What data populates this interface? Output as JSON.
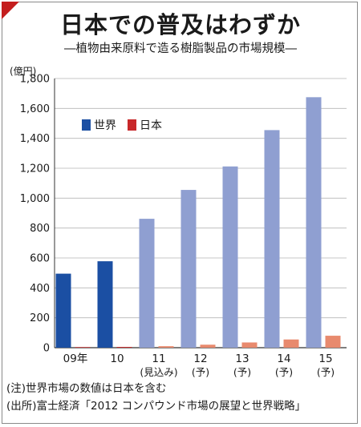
{
  "title": "日本での普及はわずか",
  "subtitle": "―植物由来原料で造る樹脂製品の市場規模―",
  "unit": "(億円)",
  "notes": [
    "(注)世界市場の数値は日本を含む",
    "(出所)富士経済「2012 コンパウンド市場の展望と世界戦略」"
  ],
  "colors": {
    "world_actual": "#1b4fa3",
    "world_forecast": "#8f9fd1",
    "japan_actual": "#c8282a",
    "japan_forecast": "#e88a6e",
    "accent": "#c41e1e"
  },
  "chart_data": {
    "type": "bar",
    "title": "日本での普及はわずか",
    "subtitle": "―植物由来原料で造る樹脂製品の市場規模―",
    "ylabel": "(億円)",
    "ylim": [
      0,
      1800
    ],
    "yticks": [
      0,
      200,
      400,
      600,
      800,
      1000,
      1200,
      1400,
      1600,
      1800
    ],
    "ytick_labels": [
      "0",
      "200",
      "400",
      "600",
      "800",
      "1,000",
      "1,200",
      "1,400",
      "1,600",
      "1,800"
    ],
    "grid": true,
    "legend_position": "top-left",
    "categories": [
      {
        "top": "09年",
        "bottom": ""
      },
      {
        "top": "10",
        "bottom": ""
      },
      {
        "top": "11",
        "bottom": "(見込み)"
      },
      {
        "top": "12",
        "bottom": "(予)"
      },
      {
        "top": "13",
        "bottom": "(予)"
      },
      {
        "top": "14",
        "bottom": "(予)"
      },
      {
        "top": "15",
        "bottom": "(予)"
      }
    ],
    "forecast_from_index": 2,
    "series": [
      {
        "name": "世界",
        "values": [
          495,
          578,
          862,
          1055,
          1212,
          1455,
          1675
        ]
      },
      {
        "name": "日本",
        "values": [
          4,
          5,
          10,
          20,
          35,
          55,
          80
        ]
      }
    ]
  }
}
